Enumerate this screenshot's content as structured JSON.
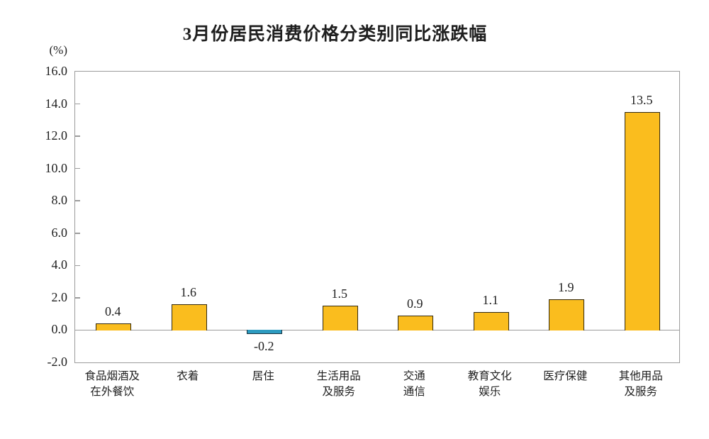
{
  "chart_data": {
    "type": "bar",
    "title": "3月份居民消费价格分类别同比涨跌幅",
    "unit_label": "(%)",
    "categories": [
      "食品烟酒及\n在外餐饮",
      "衣着",
      "居住",
      "生活用品\n及服务",
      "交通\n通信",
      "教育文化\n娱乐",
      "医疗保健",
      "其他用品\n及服务"
    ],
    "values": [
      0.4,
      1.6,
      -0.2,
      1.5,
      0.9,
      1.1,
      1.9,
      13.5
    ],
    "value_labels": [
      "0.4",
      "1.6",
      "-0.2",
      "1.5",
      "0.9",
      "1.1",
      "1.9",
      "13.5"
    ],
    "ylim": [
      -2.0,
      16.0
    ],
    "ytick_step": 2.0,
    "yticks": [
      16.0,
      14.0,
      12.0,
      10.0,
      8.0,
      6.0,
      4.0,
      2.0,
      0.0,
      -2.0
    ],
    "ytick_labels": [
      "16.0",
      "14.0",
      "12.0",
      "10.0",
      "8.0",
      "6.0",
      "4.0",
      "2.0",
      "0.0",
      "-2.0"
    ],
    "grid": false,
    "legend": "none",
    "colors": {
      "positive_bar": "#FABD1E",
      "negative_bar": "#2D9BC0",
      "positive_bar_border": "#33290F",
      "negative_bar_border": "#18323E",
      "axis_line": "#9C9C9C",
      "text": "#1F1F1F"
    }
  }
}
